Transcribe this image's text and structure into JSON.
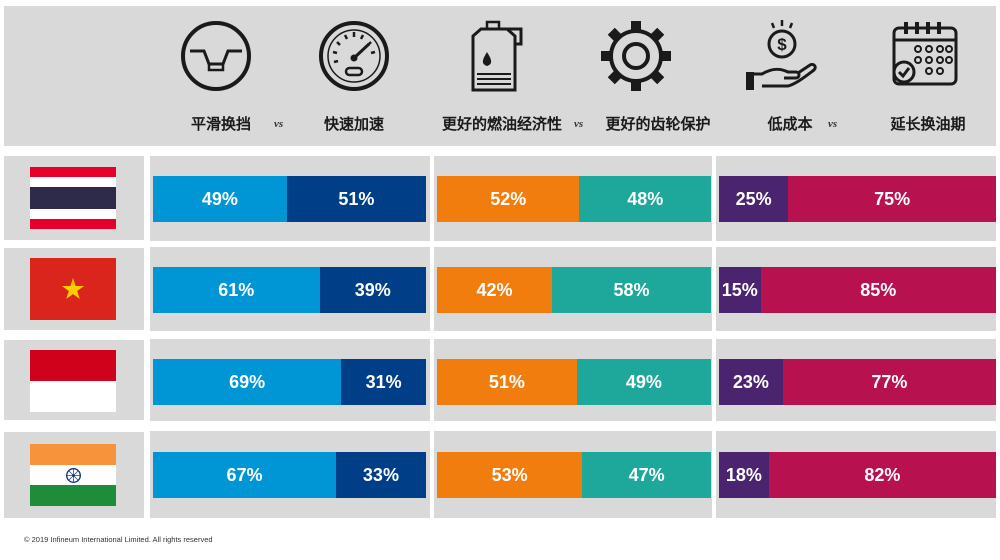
{
  "header": {
    "groups": [
      {
        "left_label": "平滑换挡",
        "vs": "vs",
        "right_label": "快速加速",
        "left_icon": "steering-wheel-icon",
        "right_icon": "speedometer-icon"
      },
      {
        "left_label": "更好的燃油经济性",
        "vs": "vs",
        "right_label": "更好的齿轮保护",
        "left_icon": "oil-can-icon",
        "right_icon": "gear-icon"
      },
      {
        "left_label": "低成本",
        "vs": "vs",
        "right_label": "延长换油期",
        "left_icon": "money-hand-icon",
        "right_icon": "calendar-icon"
      }
    ]
  },
  "colors": {
    "g1_left": "#0096d6",
    "g1_right": "#003f87",
    "g2_left": "#f07d0e",
    "g2_right": "#1ea89b",
    "g3_left": "#4b2470",
    "g3_right": "#b8114f",
    "panel_bg": "#d9d9d9"
  },
  "chart_data": {
    "type": "bar",
    "stacked": true,
    "orientation": "horizontal",
    "categories": [
      "Thailand",
      "Vietnam",
      "Indonesia",
      "India"
    ],
    "groups": [
      {
        "series": [
          {
            "name": "平滑换挡",
            "values": [
              49,
              61,
              69,
              67
            ]
          },
          {
            "name": "快速加速",
            "values": [
              51,
              39,
              31,
              33
            ]
          }
        ]
      },
      {
        "series": [
          {
            "name": "更好的燃油经济性",
            "values": [
              52,
              42,
              51,
              53
            ]
          },
          {
            "name": "更好的齿轮保护",
            "values": [
              48,
              58,
              49,
              47
            ]
          }
        ]
      },
      {
        "series": [
          {
            "name": "低成本",
            "values": [
              25,
              15,
              23,
              18
            ]
          },
          {
            "name": "延长换油期",
            "values": [
              75,
              85,
              77,
              82
            ]
          }
        ]
      }
    ],
    "labels": [
      [
        [
          "49%",
          "51%"
        ],
        [
          "52%",
          "48%"
        ],
        [
          "25%",
          "75%"
        ]
      ],
      [
        [
          "61%",
          "39%"
        ],
        [
          "42%",
          "58%"
        ],
        [
          "15%",
          "85%"
        ]
      ],
      [
        [
          "69%",
          "31%"
        ],
        [
          "51%",
          "49%"
        ],
        [
          "23%",
          "77%"
        ]
      ],
      [
        [
          "67%",
          "33%"
        ],
        [
          "53%",
          "47%"
        ],
        [
          "18%",
          "82%"
        ]
      ]
    ]
  },
  "footer": {
    "copyright": "© 2019 Infineum International Limited. All rights reserved"
  }
}
